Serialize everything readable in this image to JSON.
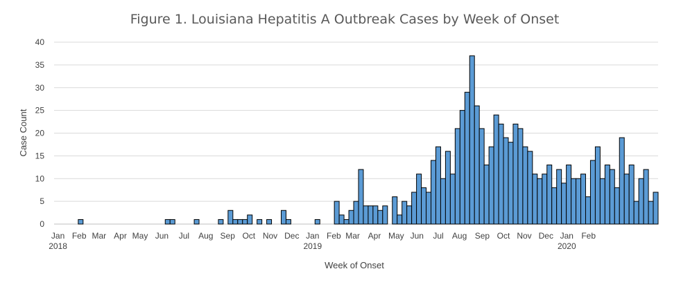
{
  "chart_data": {
    "type": "bar",
    "title": "Figure 1. Louisiana Hepatitis A Outbreak Cases by Week of Onset",
    "xlabel": "Week of Onset",
    "ylabel": "Case Count",
    "ylim": [
      0,
      40
    ],
    "yticks": [
      0,
      5,
      10,
      15,
      20,
      25,
      30,
      35,
      40
    ],
    "grid": true,
    "legend": "none",
    "color": "#5b9bd5",
    "values": [
      0,
      0,
      0,
      0,
      0,
      1,
      0,
      0,
      0,
      0,
      0,
      0,
      0,
      0,
      0,
      0,
      0,
      0,
      0,
      0,
      0,
      0,
      0,
      1,
      1,
      0,
      0,
      0,
      0,
      1,
      0,
      0,
      0,
      0,
      1,
      0,
      3,
      1,
      1,
      1,
      2,
      0,
      1,
      0,
      1,
      0,
      0,
      3,
      1,
      0,
      0,
      0,
      0,
      0,
      1,
      0,
      0,
      0,
      5,
      2,
      1,
      3,
      5,
      12,
      4,
      4,
      4,
      3,
      4,
      0,
      6,
      2,
      5,
      4,
      7,
      11,
      8,
      7,
      14,
      17,
      10,
      16,
      11,
      21,
      25,
      29,
      37,
      26,
      21,
      13,
      17,
      24,
      22,
      19,
      18,
      22,
      21,
      17,
      16,
      11,
      10,
      11,
      13,
      8,
      12,
      9,
      13,
      10,
      10,
      11,
      6,
      14,
      17,
      10,
      13,
      12,
      8,
      19,
      11,
      13,
      5,
      10,
      12,
      5,
      7
    ],
    "month_labels": [
      {
        "week": 0.8,
        "label": "Jan",
        "year": "2018"
      },
      {
        "week": 5.2,
        "label": "Feb"
      },
      {
        "week": 9.3,
        "label": "Mar"
      },
      {
        "week": 13.7,
        "label": "Apr"
      },
      {
        "week": 17.8,
        "label": "May"
      },
      {
        "week": 22.3,
        "label": "Jun"
      },
      {
        "week": 26.9,
        "label": "Jul"
      },
      {
        "week": 31.4,
        "label": "Aug"
      },
      {
        "week": 35.9,
        "label": "Sep"
      },
      {
        "week": 40.3,
        "label": "Oct"
      },
      {
        "week": 44.7,
        "label": "Nov"
      },
      {
        "week": 49.2,
        "label": "Dec"
      },
      {
        "week": 53.5,
        "label": "Jan",
        "year": "2019"
      },
      {
        "week": 57.9,
        "label": "Feb"
      },
      {
        "week": 61.8,
        "label": "Mar"
      },
      {
        "week": 66.3,
        "label": "Apr"
      },
      {
        "week": 70.8,
        "label": "May"
      },
      {
        "week": 75.1,
        "label": "Jun"
      },
      {
        "week": 79.5,
        "label": "Jul"
      },
      {
        "week": 83.9,
        "label": "Aug"
      },
      {
        "week": 88.6,
        "label": "Sep"
      },
      {
        "week": 93.0,
        "label": "Oct"
      },
      {
        "week": 97.3,
        "label": "Nov"
      },
      {
        "week": 101.8,
        "label": "Dec"
      },
      {
        "week": 106.1,
        "label": "Jan",
        "year": "2020"
      },
      {
        "week": 110.6,
        "label": "Feb"
      }
    ]
  }
}
